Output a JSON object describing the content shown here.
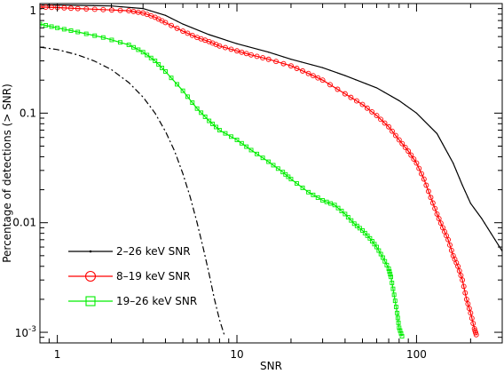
{
  "chart_data": {
    "type": "line",
    "xlabel": "SNR",
    "ylabel": "Percentage of detections (> SNR)",
    "xscale": "log",
    "yscale": "log",
    "xlim": [
      0.8,
      300
    ],
    "ylim": [
      0.0008,
      1
    ],
    "x_ticks": [
      {
        "value": 1,
        "label": "1"
      },
      {
        "value": 10,
        "label": "10"
      },
      {
        "value": 100,
        "label": "100"
      }
    ],
    "y_ticks": [
      {
        "value": 0.001,
        "label": "10^-3"
      },
      {
        "value": 0.01,
        "label": "0.01"
      },
      {
        "value": 0.1,
        "label": "0.1"
      },
      {
        "value": 1,
        "label": "1"
      }
    ],
    "legend_position": "bottom-left",
    "series": [
      {
        "name": "2–26 keV SNR",
        "color": "#000000",
        "marker": "dot",
        "style": "solid",
        "points": [
          [
            0.8,
            0.97
          ],
          [
            1,
            0.97
          ],
          [
            2,
            0.95
          ],
          [
            3,
            0.9
          ],
          [
            4,
            0.78
          ],
          [
            5,
            0.65
          ],
          [
            7,
            0.52
          ],
          [
            10,
            0.43
          ],
          [
            15,
            0.36
          ],
          [
            20,
            0.31
          ],
          [
            30,
            0.26
          ],
          [
            40,
            0.22
          ],
          [
            60,
            0.17
          ],
          [
            80,
            0.13
          ],
          [
            100,
            0.1
          ],
          [
            130,
            0.065
          ],
          [
            160,
            0.035
          ],
          [
            180,
            0.022
          ],
          [
            200,
            0.015
          ],
          [
            230,
            0.011
          ],
          [
            260,
            0.008
          ],
          [
            300,
            0.0055
          ]
        ]
      },
      {
        "name": "8–19 keV SNR",
        "color": "#ff0000",
        "marker": "circle",
        "style": "solid",
        "points": [
          [
            0.8,
            0.93
          ],
          [
            1,
            0.92
          ],
          [
            1.3,
            0.9
          ],
          [
            1.8,
            0.88
          ],
          [
            2.5,
            0.86
          ],
          [
            3,
            0.82
          ],
          [
            3.5,
            0.75
          ],
          [
            4,
            0.67
          ],
          [
            5,
            0.56
          ],
          [
            6,
            0.49
          ],
          [
            7,
            0.45
          ],
          [
            8,
            0.41
          ],
          [
            10,
            0.37
          ],
          [
            12,
            0.34
          ],
          [
            15,
            0.31
          ],
          [
            20,
            0.27
          ],
          [
            25,
            0.23
          ],
          [
            30,
            0.2
          ],
          [
            40,
            0.15
          ],
          [
            50,
            0.12
          ],
          [
            60,
            0.095
          ],
          [
            70,
            0.075
          ],
          [
            80,
            0.057
          ],
          [
            90,
            0.045
          ],
          [
            100,
            0.035
          ],
          [
            110,
            0.025
          ],
          [
            120,
            0.017
          ],
          [
            130,
            0.012
          ],
          [
            140,
            0.009
          ],
          [
            150,
            0.007
          ],
          [
            160,
            0.005
          ],
          [
            170,
            0.004
          ],
          [
            180,
            0.003
          ],
          [
            190,
            0.002
          ],
          [
            200,
            0.0015
          ],
          [
            210,
            0.00108
          ],
          [
            215,
            0.00095
          ]
        ]
      },
      {
        "name": "19–26 keV SNR",
        "color": "#00ee00",
        "marker": "square",
        "style": "solid",
        "points": [
          [
            0.8,
            0.65
          ],
          [
            1,
            0.6
          ],
          [
            1.3,
            0.55
          ],
          [
            1.8,
            0.49
          ],
          [
            2.5,
            0.42
          ],
          [
            3,
            0.36
          ],
          [
            3.5,
            0.3
          ],
          [
            4,
            0.24
          ],
          [
            5,
            0.16
          ],
          [
            6,
            0.11
          ],
          [
            7,
            0.085
          ],
          [
            8,
            0.07
          ],
          [
            10,
            0.057
          ],
          [
            12,
            0.046
          ],
          [
            15,
            0.036
          ],
          [
            18,
            0.029
          ],
          [
            20,
            0.025
          ],
          [
            25,
            0.019
          ],
          [
            30,
            0.016
          ],
          [
            35,
            0.0145
          ],
          [
            40,
            0.012
          ],
          [
            45,
            0.0098
          ],
          [
            50,
            0.0085
          ],
          [
            55,
            0.0072
          ],
          [
            60,
            0.006
          ],
          [
            65,
            0.0048
          ],
          [
            70,
            0.0038
          ],
          [
            72,
            0.0032
          ],
          [
            75,
            0.0022
          ],
          [
            78,
            0.0015
          ],
          [
            80,
            0.0011
          ],
          [
            83,
            0.00092
          ]
        ]
      },
      {
        "name": "",
        "color": "#000000",
        "marker": "none",
        "style": "dash-dot",
        "points": [
          [
            0.8,
            0.4
          ],
          [
            1,
            0.38
          ],
          [
            1.3,
            0.34
          ],
          [
            1.6,
            0.3
          ],
          [
            2,
            0.25
          ],
          [
            2.5,
            0.19
          ],
          [
            3,
            0.14
          ],
          [
            3.5,
            0.1
          ],
          [
            4,
            0.068
          ],
          [
            4.5,
            0.045
          ],
          [
            5,
            0.028
          ],
          [
            5.5,
            0.017
          ],
          [
            6,
            0.01
          ],
          [
            6.5,
            0.0058
          ],
          [
            7,
            0.0034
          ],
          [
            7.5,
            0.002
          ],
          [
            8,
            0.0013
          ],
          [
            8.5,
            0.00095
          ]
        ]
      }
    ]
  }
}
